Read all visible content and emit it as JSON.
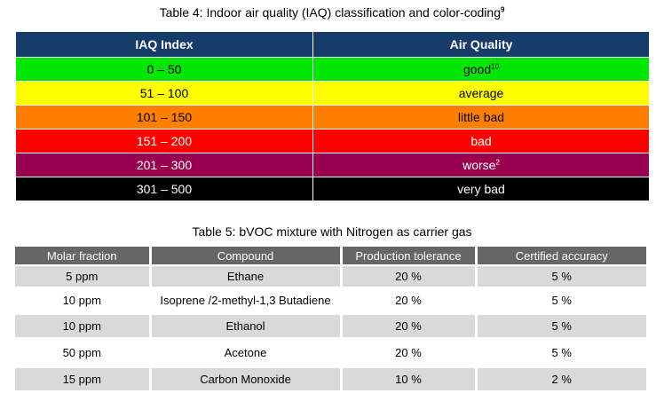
{
  "table4": {
    "caption": "Table 4: Indoor air quality (IAQ) classification and color-coding",
    "caption_footnote": "9",
    "headers": [
      "IAQ Index",
      "Air Quality"
    ],
    "rows": [
      {
        "index": "0 – 50",
        "quality": "good",
        "footnote": "10",
        "color": "#00e600"
      },
      {
        "index": "51 – 100",
        "quality": "average",
        "footnote": "",
        "color": "#ffff00"
      },
      {
        "index": "101 – 150",
        "quality": "little bad",
        "footnote": "",
        "color": "#ff8000"
      },
      {
        "index": "151 – 200",
        "quality": "bad",
        "footnote": "",
        "color": "#ff0000"
      },
      {
        "index": "201 – 300",
        "quality": "worse",
        "footnote": "2",
        "color": "#990050"
      },
      {
        "index": "301 – 500",
        "quality": "very bad",
        "footnote": "",
        "color": "#000000"
      }
    ],
    "header_color": "#173c6b"
  },
  "table5": {
    "caption": "Table 5: bVOC mixture with Nitrogen as carrier gas",
    "headers": [
      "Molar fraction",
      "Compound",
      "Production tolerance",
      "Certified accuracy"
    ],
    "rows": [
      [
        "5 ppm",
        "Ethane",
        "20 %",
        "5 %"
      ],
      [
        "10 ppm",
        "Isoprene /2-methyl-1,3 Butadiene",
        "20 %",
        "5 %"
      ],
      [
        "10 ppm",
        "Ethanol",
        "20 %",
        "5 %"
      ],
      [
        "50 ppm",
        "Acetone",
        "20 %",
        "5 %"
      ],
      [
        "15 ppm",
        "Carbon Monoxide",
        "10 %",
        "2 %"
      ]
    ],
    "header_color": "#666666"
  }
}
